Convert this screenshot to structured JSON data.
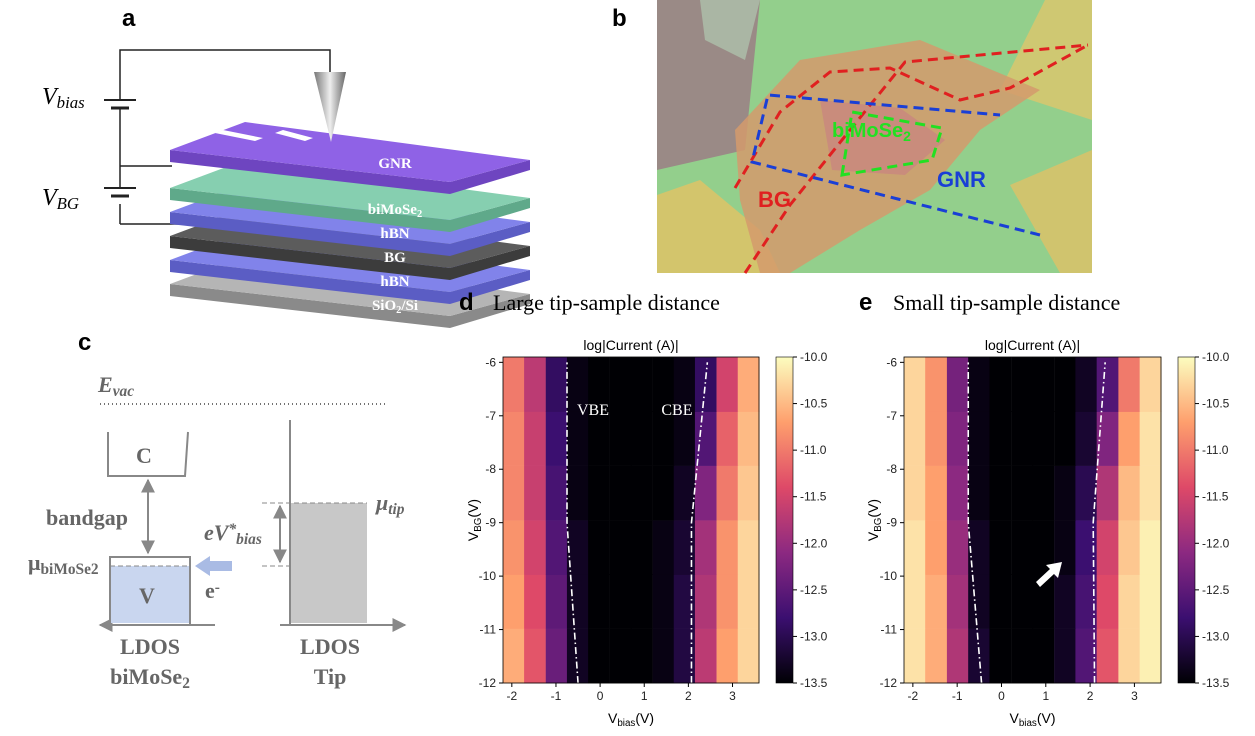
{
  "panel_a": {
    "label": "a",
    "v_bias": [
      "V",
      {
        "sub": "bias"
      }
    ],
    "v_bg": [
      "V",
      {
        "sub": "BG"
      }
    ],
    "layers": [
      [
        "GNR"
      ],
      [
        "biMoSe",
        {
          "sub": "2"
        }
      ],
      [
        "hBN"
      ],
      [
        "BG"
      ],
      [
        "hBN"
      ],
      [
        "SiO",
        {
          "sub": "2"
        },
        "/Si"
      ]
    ]
  },
  "panel_b": {
    "label": "b",
    "bg": "BG",
    "gnr": "GNR",
    "bimose2": [
      "biMoSe",
      {
        "sub": "2"
      }
    ]
  },
  "panel_c": {
    "label": "c",
    "e_vac": [
      "E",
      {
        "sub": "vac"
      }
    ],
    "conduction": "C",
    "bandgap": "bandgap",
    "mu_sample": [
      "μ",
      {
        "sub": "biMoSe2"
      }
    ],
    "valence": "V",
    "electron": [
      "e",
      {
        "sup": "-"
      }
    ],
    "ev_bias": [
      "eV",
      {
        "sup": "*"
      },
      {
        "sub": "bias"
      }
    ],
    "mu_tip": [
      "μ",
      {
        "sub": "tip"
      }
    ],
    "ldos_sample": "LDOS",
    "sample": [
      "biMoSe",
      {
        "sub": "2"
      }
    ],
    "ldos_tip": "LDOS",
    "tip": "Tip"
  },
  "chart_data": [
    {
      "type": "heatmap",
      "panel_label": "d",
      "heading": "Large tip-sample distance",
      "title": "log|Current (A)|",
      "xlabel": [
        "V",
        {
          "sub": "bias"
        },
        "(V)"
      ],
      "ylabel": [
        "V",
        {
          "sub": "BG"
        },
        "(V)"
      ],
      "x": [
        -1.96,
        -1.48,
        -0.99,
        -0.51,
        -0.03,
        0.46,
        0.94,
        1.43,
        1.91,
        2.39,
        2.88,
        3.36
      ],
      "y": [
        -11.49,
        -10.47,
        -9.46,
        -8.44,
        -7.42,
        -6.41
      ],
      "values": [
        [
          -10.6,
          -11.3,
          -12.4,
          -13.3,
          -13.5,
          -13.5,
          -13.5,
          -13.4,
          -13.1,
          -11.7,
          -10.7,
          -10.3
        ],
        [
          -10.7,
          -11.4,
          -12.5,
          -13.3,
          -13.5,
          -13.5,
          -13.5,
          -13.4,
          -13.1,
          -11.8,
          -10.8,
          -10.3
        ],
        [
          -10.8,
          -11.5,
          -12.6,
          -13.3,
          -13.5,
          -13.5,
          -13.5,
          -13.4,
          -13.2,
          -11.9,
          -10.8,
          -10.3
        ],
        [
          -10.9,
          -11.6,
          -12.7,
          -13.4,
          -13.5,
          -13.5,
          -13.5,
          -13.5,
          -13.3,
          -12.2,
          -11.0,
          -10.4
        ],
        [
          -10.9,
          -11.6,
          -12.8,
          -13.4,
          -13.5,
          -13.5,
          -13.5,
          -13.5,
          -13.4,
          -12.6,
          -11.2,
          -10.5
        ],
        [
          -11.0,
          -11.7,
          -12.9,
          -13.4,
          -13.5,
          -13.5,
          -13.5,
          -13.5,
          -13.4,
          -12.9,
          -11.5,
          -10.6
        ]
      ],
      "xlim": [
        -2.2,
        3.6
      ],
      "ylim": [
        -12,
        -5.9
      ],
      "xticks": [
        -2,
        -1,
        0,
        1,
        2,
        3
      ],
      "yticks": [
        -12,
        -11,
        -10,
        -9,
        -8,
        -7,
        -6
      ],
      "colormap": "magma",
      "clim": [
        -13.5,
        -10
      ],
      "cticks": [
        {
          "value": -10,
          "label": "-10.0"
        },
        -10.5,
        {
          "value": -11,
          "label": "-11.0"
        },
        -11.5,
        {
          "value": -12,
          "label": "-12.0"
        },
        -12.5,
        {
          "value": -13,
          "label": "-13.0"
        },
        -13.5
      ],
      "boundaries": [
        {
          "x": [
            -0.5,
            -0.75,
            -0.75
          ],
          "y": [
            -12,
            -9,
            -6
          ]
        },
        {
          "x": [
            2.07,
            2.07,
            2.43
          ],
          "y": [
            -12,
            -9,
            -6
          ]
        }
      ],
      "annotations": [
        "VBE",
        "CBE"
      ]
    },
    {
      "type": "heatmap",
      "panel_label": "e",
      "heading": "Small tip-sample distance",
      "title": "log|Current (A)|",
      "xlabel": [
        "V",
        {
          "sub": "bias"
        },
        "(V)"
      ],
      "ylabel": [
        "V",
        {
          "sub": "BG"
        },
        "(V)"
      ],
      "x": [
        -1.96,
        -1.48,
        -0.99,
        -0.51,
        -0.03,
        0.46,
        0.94,
        1.43,
        1.91,
        2.39,
        2.88,
        3.36
      ],
      "y": [
        -11.49,
        -10.47,
        -9.46,
        -8.44,
        -7.42,
        -6.41
      ],
      "values": [
        [
          -10.2,
          -10.6,
          -11.8,
          -13.2,
          -13.5,
          -13.5,
          -13.5,
          -13.3,
          -12.6,
          -11.3,
          -10.3,
          -10.1
        ],
        [
          -10.2,
          -10.6,
          -11.9,
          -13.3,
          -13.5,
          -13.5,
          -13.5,
          -13.3,
          -12.7,
          -11.4,
          -10.3,
          -10.1
        ],
        [
          -10.2,
          -10.7,
          -12.0,
          -13.3,
          -13.5,
          -13.5,
          -13.5,
          -13.4,
          -12.8,
          -11.5,
          -10.4,
          -10.1
        ],
        [
          -10.3,
          -10.7,
          -12.1,
          -13.4,
          -13.5,
          -13.5,
          -13.5,
          -13.4,
          -13.0,
          -11.8,
          -10.5,
          -10.2
        ],
        [
          -10.3,
          -10.8,
          -12.2,
          -13.4,
          -13.5,
          -13.5,
          -13.5,
          -13.5,
          -13.2,
          -12.2,
          -10.7,
          -10.2
        ],
        [
          -10.3,
          -10.8,
          -12.3,
          -13.4,
          -13.5,
          -13.5,
          -13.5,
          -13.5,
          -13.3,
          -12.6,
          -11.0,
          -10.3
        ]
      ],
      "xlim": [
        -2.2,
        3.6
      ],
      "ylim": [
        -12,
        -5.9
      ],
      "xticks": [
        -2,
        -1,
        0,
        1,
        2,
        3
      ],
      "yticks": [
        -12,
        -11,
        -10,
        -9,
        -8,
        -7,
        -6
      ],
      "colormap": "magma",
      "clim": [
        -13.5,
        -10
      ],
      "cticks": [
        {
          "value": -10,
          "label": "-10.0"
        },
        -10.5,
        {
          "value": -11,
          "label": "-11.0"
        },
        -11.5,
        {
          "value": -12,
          "label": "-12.0"
        },
        -12.5,
        {
          "value": -13,
          "label": "-13.0"
        },
        -13.5
      ],
      "boundaries": [
        {
          "x": [
            -0.45,
            -0.75,
            -0.75
          ],
          "y": [
            -12,
            -9,
            -6
          ]
        },
        {
          "x": [
            2.1,
            2.07,
            2.34
          ],
          "y": [
            -12,
            -9,
            -6
          ]
        }
      ]
    }
  ]
}
